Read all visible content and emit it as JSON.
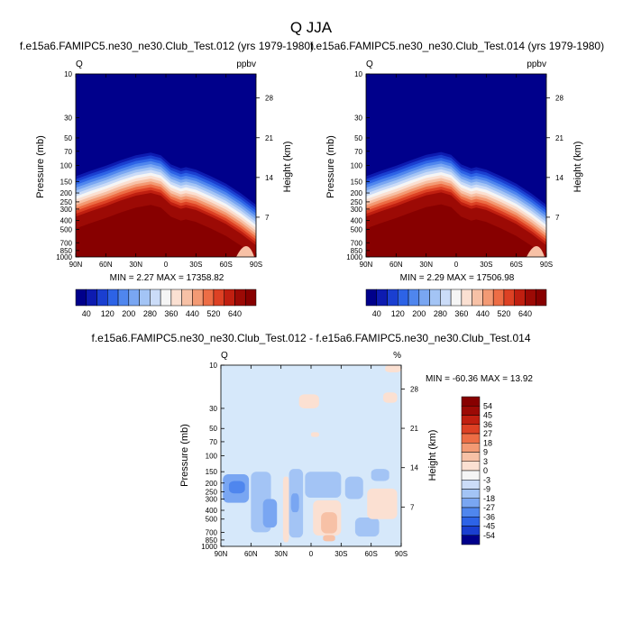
{
  "figure": {
    "title": "Q JJA"
  },
  "colors": {
    "blues": [
      "#00008b",
      "#0d1bb0",
      "#1a3fd0",
      "#2d63e6",
      "#4f86ee",
      "#79a6f2",
      "#a3c4f5",
      "#cbdcf8"
    ],
    "white": "#f5f5f5",
    "reds": [
      "#fbe0d2",
      "#f7c1a6",
      "#f39a74",
      "#ed6d45",
      "#dd4124",
      "#c01f10",
      "#9c0a05",
      "#870000"
    ],
    "diff_fill": "#d6e8fa"
  },
  "chart_data": [
    {
      "type": "heatmap",
      "name": "model-a",
      "title": "f.e15a6.FAMIPC5.ne30_ne30.Club_Test.012 (yrs 1979-1980)",
      "left_corner": "Q",
      "right_corner": "ppbv",
      "ylabel": "Pressure (mb)",
      "ylabel_right": "Height (km)",
      "x_ticks": [
        "90N",
        "60N",
        "30N",
        "0",
        "30S",
        "60S",
        "90S"
      ],
      "y_ticks": [
        "10",
        "30",
        "50",
        "70",
        "100",
        "150",
        "200",
        "250",
        "300",
        "400",
        "500",
        "700",
        "850",
        "1000"
      ],
      "y_ticks_right": [
        "28",
        "21",
        "14",
        "7"
      ],
      "stats": "MIN =  2.27  MAX = 17358.82",
      "min": 2.27,
      "max": 17358.82,
      "colorbar": {
        "orientation": "horizontal",
        "labels": [
          "40",
          "120",
          "200",
          "280",
          "360",
          "440",
          "520",
          "640"
        ]
      },
      "profile": {
        "lat": [
          -90,
          -75,
          -60,
          -45,
          -30,
          -15,
          -5,
          5,
          15,
          20,
          30,
          45,
          60,
          75,
          90
        ],
        "top_pressure_mb": [
          390,
          340,
          300,
          260,
          230,
          215,
          230,
          290,
          320,
          310,
          330,
          390,
          470,
          600,
          800
        ]
      }
    },
    {
      "type": "heatmap",
      "name": "model-b",
      "title": "f.e15a6.FAMIPC5.ne30_ne30.Club_Test.014 (yrs 1979-1980)",
      "left_corner": "Q",
      "right_corner": "ppbv",
      "ylabel": "Pressure (mb)",
      "ylabel_right": "Height (km)",
      "x_ticks": [
        "90N",
        "60N",
        "30N",
        "0",
        "30S",
        "60S",
        "90S"
      ],
      "y_ticks": [
        "10",
        "30",
        "50",
        "70",
        "100",
        "150",
        "200",
        "250",
        "300",
        "400",
        "500",
        "700",
        "850",
        "1000"
      ],
      "y_ticks_right": [
        "28",
        "21",
        "14",
        "7"
      ],
      "stats": "MIN =  2.29  MAX = 17506.98",
      "min": 2.29,
      "max": 17506.98,
      "colorbar": {
        "orientation": "horizontal",
        "labels": [
          "40",
          "120",
          "200",
          "280",
          "360",
          "440",
          "520",
          "640"
        ]
      },
      "profile": {
        "lat": [
          -90,
          -75,
          -60,
          -45,
          -30,
          -15,
          -5,
          5,
          15,
          20,
          30,
          45,
          60,
          75,
          90
        ],
        "top_pressure_mb": [
          390,
          340,
          300,
          260,
          228,
          212,
          228,
          290,
          320,
          310,
          330,
          390,
          470,
          600,
          800
        ]
      }
    },
    {
      "type": "heatmap",
      "name": "difference",
      "title": "f.e15a6.FAMIPC5.ne30_ne30.Club_Test.012 - f.e15a6.FAMIPC5.ne30_ne30.Club_Test.014",
      "left_corner": "Q",
      "right_corner": "%",
      "ylabel": "Pressure (mb)",
      "ylabel_right": "Height (km)",
      "x_ticks": [
        "90N",
        "60N",
        "30N",
        "0",
        "30S",
        "60S",
        "90S"
      ],
      "y_ticks": [
        "10",
        "30",
        "50",
        "70",
        "100",
        "150",
        "200",
        "250",
        "300",
        "400",
        "500",
        "700",
        "850",
        "1000"
      ],
      "y_ticks_right": [
        "28",
        "21",
        "14",
        "7"
      ],
      "stats": "MIN = -60.36  MAX =  13.92",
      "min": -60.36,
      "max": 13.92,
      "colorbar": {
        "orientation": "vertical",
        "labels": [
          "54",
          "45",
          "36",
          "27",
          "18",
          "9",
          "3",
          "0",
          "-3",
          "-9",
          "-18",
          "-27",
          "-36",
          "-45",
          "-54"
        ]
      },
      "patches": [
        {
          "lat_from": -88,
          "lat_to": -62,
          "p_top": 160,
          "p_bottom": 330,
          "level": -2
        },
        {
          "lat_from": -82,
          "lat_to": -66,
          "p_top": 190,
          "p_bottom": 260,
          "level": -3
        },
        {
          "lat_from": -60,
          "lat_to": -40,
          "p_top": 150,
          "p_bottom": 700,
          "level": -1
        },
        {
          "lat_from": -48,
          "lat_to": -34,
          "p_top": 300,
          "p_bottom": 620,
          "level": -2
        },
        {
          "lat_from": -28,
          "lat_to": -22,
          "p_top": 170,
          "p_bottom": 900,
          "level": 1
        },
        {
          "lat_from": -22,
          "lat_to": -8,
          "p_top": 140,
          "p_bottom": 800,
          "level": -1
        },
        {
          "lat_from": -20,
          "lat_to": -12,
          "p_top": 260,
          "p_bottom": 420,
          "level": -2
        },
        {
          "lat_from": -6,
          "lat_to": 30,
          "p_top": 150,
          "p_bottom": 290,
          "level": -1
        },
        {
          "lat_from": 2,
          "lat_to": 30,
          "p_top": 310,
          "p_bottom": 760,
          "level": 1
        },
        {
          "lat_from": 10,
          "lat_to": 26,
          "p_top": 420,
          "p_bottom": 720,
          "level": 2
        },
        {
          "lat_from": 34,
          "lat_to": 52,
          "p_top": 170,
          "p_bottom": 300,
          "level": -1
        },
        {
          "lat_from": 44,
          "lat_to": 68,
          "p_top": 480,
          "p_bottom": 780,
          "level": -1
        },
        {
          "lat_from": 56,
          "lat_to": 86,
          "p_top": 230,
          "p_bottom": 500,
          "level": 1
        },
        {
          "lat_from": 60,
          "lat_to": 78,
          "p_top": 140,
          "p_bottom": 190,
          "level": -1
        },
        {
          "lat_from": 12,
          "lat_to": 24,
          "p_top": 750,
          "p_bottom": 880,
          "level": 2
        },
        {
          "lat_from": -12,
          "lat_to": 8,
          "p_top": 21,
          "p_bottom": 30,
          "level": 1
        },
        {
          "lat_from": 72,
          "lat_to": 86,
          "p_top": 20,
          "p_bottom": 26,
          "level": 1
        },
        {
          "lat_from": 0,
          "lat_to": 8,
          "p_top": 55,
          "p_bottom": 62,
          "level": 1
        },
        {
          "lat_from": 74,
          "lat_to": 90,
          "p_top": 10,
          "p_bottom": 12,
          "level": 1
        }
      ]
    }
  ]
}
